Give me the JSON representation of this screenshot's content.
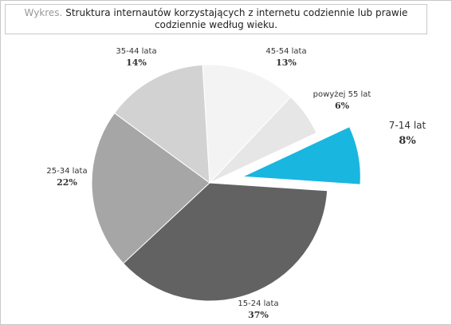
{
  "chart_data": {
    "type": "pie",
    "title_prefix": "Wykres.",
    "title": "Struktura internautów korzystających z internetu codziennie lub prawie codziennie według wieku.",
    "categories": [
      "25-34 lata",
      "35-44 lata",
      "45-54 lata",
      "powyżej 55 lat",
      "7-14 lat",
      "15-24 lata"
    ],
    "values": [
      22,
      14,
      13,
      6,
      8,
      37
    ],
    "value_labels": [
      "22%",
      "14%",
      "13%",
      "6%",
      "8%",
      "37%"
    ],
    "colors": [
      "#a6a6a6",
      "#d2d2d2",
      "#f3f3f3",
      "#e6e6e6",
      "#19b6e0",
      "#626262"
    ]
  }
}
